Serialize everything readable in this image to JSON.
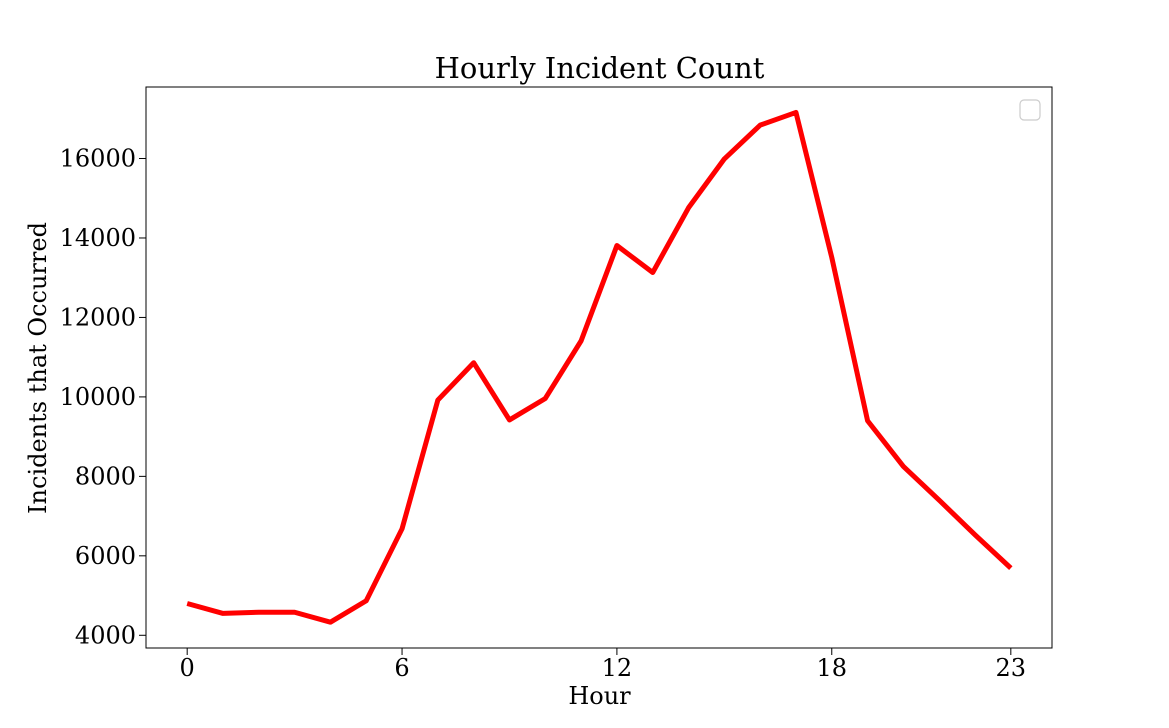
{
  "chart_data": {
    "type": "line",
    "title": "Hourly Incident Count",
    "xlabel": "Hour",
    "ylabel": "Incidents that Occurred",
    "x": [
      0,
      1,
      2,
      3,
      4,
      5,
      6,
      7,
      8,
      9,
      10,
      11,
      12,
      13,
      14,
      15,
      16,
      17,
      18,
      19,
      20,
      21,
      22,
      23
    ],
    "series": [
      {
        "values": [
          4800,
          4550,
          4580,
          4580,
          4330,
          4870,
          6680,
          9920,
          10860,
          9420,
          9960,
          11410,
          13810,
          13130,
          14760,
          15990,
          16840,
          17160,
          13510,
          9400,
          8250,
          7400,
          6530,
          5690
        ],
        "color": "#ff0000"
      }
    ],
    "xticks": [
      "0",
      "6",
      "12",
      "18",
      "23"
    ],
    "xtick_values": [
      0,
      6,
      12,
      18,
      23
    ],
    "yticks": [
      "4000",
      "6000",
      "8000",
      "10000",
      "12000",
      "14000",
      "16000"
    ],
    "ytick_values": [
      4000,
      6000,
      8000,
      10000,
      12000,
      14000,
      16000
    ],
    "xlim": [
      -1.15,
      24.15
    ],
    "ylim": [
      3680,
      17800
    ],
    "grid": false,
    "legend": {
      "placement": "top-right",
      "entries": []
    }
  }
}
